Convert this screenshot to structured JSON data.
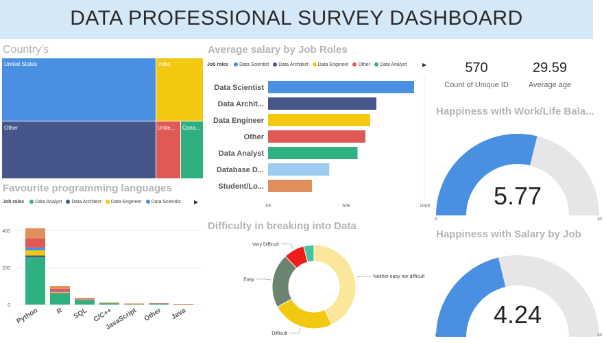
{
  "header": {
    "title": "DATA PROFESSIONAL SURVEY DASHBOARD"
  },
  "colors": {
    "blue": "#4a90e2",
    "navy": "#46558a",
    "yellow": "#f2c811",
    "red": "#e05a55",
    "green": "#2fb080",
    "lightblue": "#9ecbf0",
    "orange": "#e0905e",
    "gray": "#e6e6e6"
  },
  "countries": {
    "title": "Country's",
    "chart_data": {
      "type": "treemap",
      "items": [
        {
          "name": "United States",
          "color": "#4a90e2"
        },
        {
          "name": "India",
          "color": "#f2c811"
        },
        {
          "name": "Other",
          "color": "#46558a"
        },
        {
          "name": "Unite...",
          "color": "#e05a55"
        },
        {
          "name": "Cana...",
          "color": "#2fb080"
        }
      ]
    }
  },
  "salary": {
    "title": "Average salary by Job Roles",
    "legend_title": "Job roles",
    "legend": [
      {
        "name": "Data Scientist",
        "color": "#4a90e2"
      },
      {
        "name": "Data Architect",
        "color": "#46558a"
      },
      {
        "name": "Data Engineer",
        "color": "#f2c811"
      },
      {
        "name": "Other",
        "color": "#e05a55"
      },
      {
        "name": "Data Analyst",
        "color": "#2fb080"
      }
    ],
    "chart_data": {
      "type": "bar",
      "orientation": "horizontal",
      "categories": [
        "Data Scientist",
        "Data Archit...",
        "Data Engineer",
        "Other",
        "Data Analyst",
        "Database D...",
        "Student/Lo..."
      ],
      "values": [
        93000,
        69000,
        65000,
        62000,
        57000,
        39000,
        28000
      ],
      "colors": [
        "#4a90e2",
        "#46558a",
        "#f2c811",
        "#e05a55",
        "#2fb080",
        "#9ecbf0",
        "#e0905e"
      ],
      "xlim": [
        0,
        100000
      ],
      "xticks": [
        0,
        50000,
        100000
      ],
      "xtick_labels": [
        ".0K",
        "50K",
        "100K"
      ]
    }
  },
  "cards": [
    {
      "value": "570",
      "label": "Count of Unique ID"
    },
    {
      "value": "29.59",
      "label": "Average age"
    }
  ],
  "gauges": [
    {
      "title": "Happiness with Work/Life Bala...",
      "value": 5.77,
      "value_label": "5.77",
      "min": 0,
      "max": 10,
      "min_label": "0",
      "max_label": "10"
    },
    {
      "title": "Happiness with Salary by Job",
      "value": 4.24,
      "value_label": "4.24",
      "min": 0,
      "max": 10,
      "min_label": "0",
      "max_label": "10"
    }
  ],
  "languages": {
    "title": "Favourite programming languages",
    "legend_title": "Job roles",
    "legend": [
      {
        "name": "Data Analyst",
        "color": "#2fb080"
      },
      {
        "name": "Data Architect",
        "color": "#46558a"
      },
      {
        "name": "Data Engineer",
        "color": "#f2c811"
      },
      {
        "name": "Data Scientist",
        "color": "#4a90e2"
      }
    ],
    "chart_data": {
      "type": "bar",
      "stacked": true,
      "categories": [
        "Python",
        "R",
        "SQL",
        "C/C++",
        "JavaScript",
        "Other",
        "Java"
      ],
      "ylim": [
        0,
        430
      ],
      "yticks": [
        0,
        200,
        400
      ],
      "series": [
        {
          "color": "#2fb080",
          "values": [
            255,
            58,
            22,
            8,
            2,
            6,
            1
          ]
        },
        {
          "color": "#46558a",
          "values": [
            10,
            3,
            2,
            0,
            0,
            0,
            0
          ]
        },
        {
          "color": "#f2c811",
          "values": [
            28,
            5,
            4,
            1,
            2,
            0,
            1
          ]
        },
        {
          "color": "#4a90e2",
          "values": [
            15,
            5,
            2,
            0,
            0,
            0,
            0
          ]
        },
        {
          "color": "#e05a55",
          "values": [
            50,
            15,
            3,
            1,
            1,
            1,
            1
          ]
        },
        {
          "color": "#e0905e",
          "values": [
            55,
            14,
            3,
            1,
            1,
            0,
            0
          ]
        }
      ]
    }
  },
  "difficulty": {
    "title": "Difficulty in breaking into Data",
    "chart_data": {
      "type": "pie",
      "donut": true,
      "slices": [
        {
          "label": "Neither easy nor difficult",
          "value": 43,
          "color": "#fce69c"
        },
        {
          "label": "Difficult",
          "value": 24,
          "color": "#f2c811"
        },
        {
          "label": "Easy",
          "value": 21,
          "color": "#6b8470"
        },
        {
          "label": "Very Difficult",
          "value": 8,
          "color": "#ef1c1c"
        },
        {
          "label": "",
          "value": 4,
          "color": "#47c4a0"
        }
      ]
    }
  }
}
